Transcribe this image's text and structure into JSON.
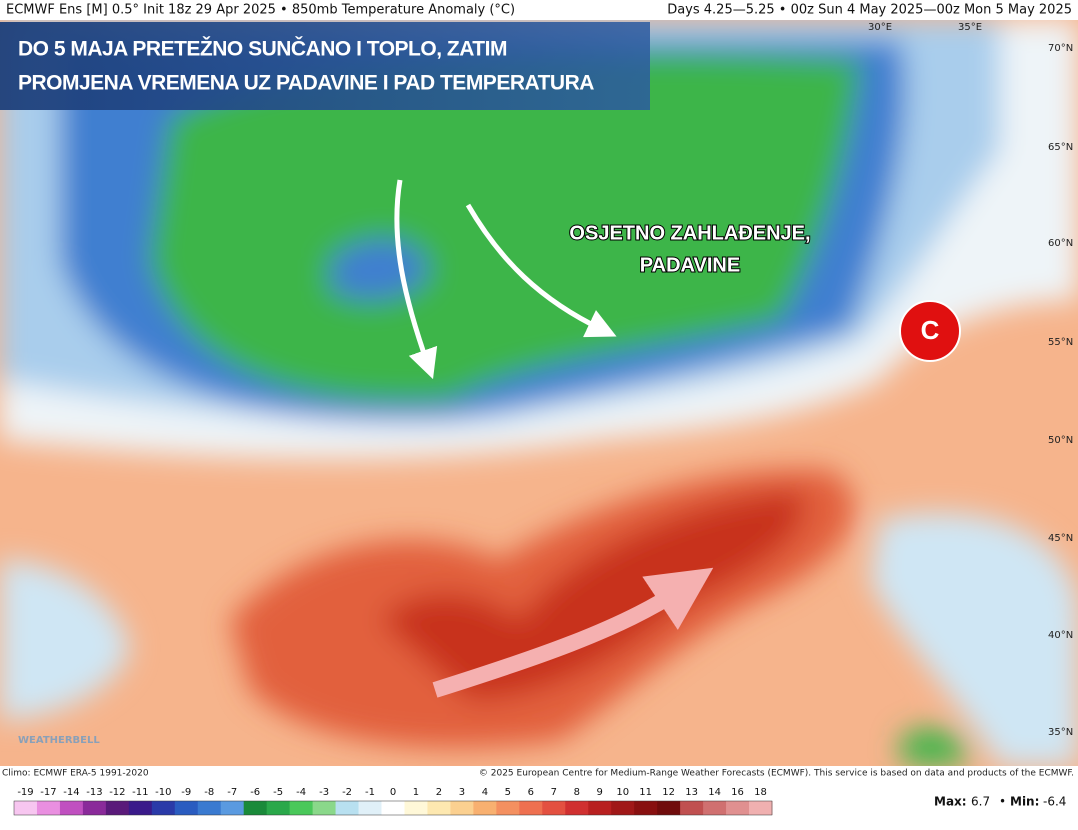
{
  "header": {
    "left": "ECMWF Ens [M] 0.5° Init 18z 29 Apr 2025 • 850mb Temperature Anomaly (°C)",
    "right": "Days 4.25—5.25 • 00z Sun 4 May 2025—00z Mon 5 May 2025"
  },
  "overlay_title": [
    "DO 5 MAJA PRETEŽNO SUNČANO I TOPLO, ZATIM",
    "PROMJENA VREMENA UZ PADAVINE I PAD TEMPERATURA"
  ],
  "annotation": [
    "OSJETNO ZAHLAĐENJE,",
    "PADAVINE"
  ],
  "marker": "C",
  "longitudes": [
    "30°E",
    "35°E"
  ],
  "latitudes": [
    "70°N",
    "65°N",
    "60°N",
    "55°N",
    "50°N",
    "45°N",
    "40°N",
    "35°N"
  ],
  "logo": "WEATHERBELL",
  "footer": {
    "climo": "Climo: ECMWF ERA-5 1991-2020",
    "copyright": "© 2025 European Centre for Medium-Range Weather Forecasts (ECMWF). This service is based on data and products of the ECMWF."
  },
  "colorbar": {
    "labels": [
      "-19",
      "-17",
      "-14",
      "-13",
      "-12",
      "-11",
      "-10",
      "-9",
      "-8",
      "-7",
      "-6",
      "-5",
      "-4",
      "-3",
      "-2",
      "-1",
      "0",
      "1",
      "2",
      "3",
      "4",
      "5",
      "6",
      "7",
      "8",
      "9",
      "10",
      "11",
      "12",
      "13",
      "14",
      "16",
      "18"
    ],
    "colors": [
      "#f7c6f0",
      "#e98fe0",
      "#c050c0",
      "#8a2a9a",
      "#5a1a7a",
      "#3a1a8a",
      "#2a3aa8",
      "#2a5cc0",
      "#3a7ad0",
      "#5a9ae0",
      "#1a8a3a",
      "#2aa84a",
      "#4ac85a",
      "#8ad88a",
      "#b8e0f0",
      "#e0f0f8",
      "#ffffff",
      "#fff8d8",
      "#fde8b0",
      "#fbd090",
      "#f8b070",
      "#f49060",
      "#ee7050",
      "#e35040",
      "#d03030",
      "#b82020",
      "#a01818",
      "#881010",
      "#700c0c",
      "#c05050",
      "#d07070",
      "#e09090",
      "#f0b0b0"
    ]
  },
  "stats": {
    "max_label": "Max:",
    "max": "6.7",
    "sep": "•",
    "min_label": "Min:",
    "min": "-6.4"
  }
}
